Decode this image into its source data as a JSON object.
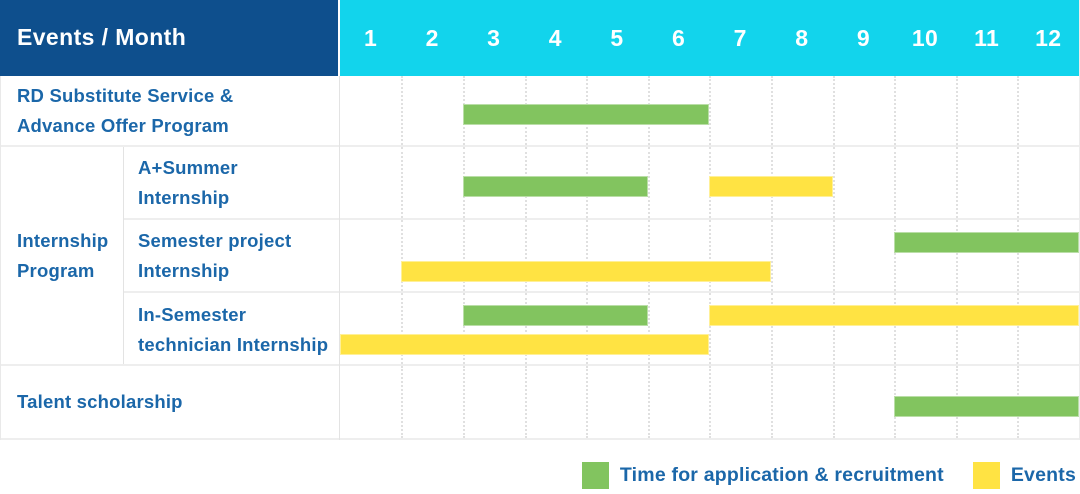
{
  "title": "Events / Month",
  "months": [
    "1",
    "2",
    "3",
    "4",
    "5",
    "6",
    "7",
    "8",
    "9",
    "10",
    "11",
    "12"
  ],
  "colors": {
    "header_navy": "#0e4f8d",
    "header_cyan": "#12d4ec",
    "bar_green": "#82c45f",
    "bar_yellow": "#ffe343",
    "label_blue": "#1b67a9"
  },
  "group": {
    "label_lines": [
      "Internship",
      "Program"
    ]
  },
  "rows": [
    {
      "name": "rd-substitute-service-advance-offer-program",
      "label_lines": [
        "RD Substitute Service &",
        "Advance Offer Program"
      ],
      "lines": [
        [
          {
            "color": "green",
            "start_month": 3,
            "end_month": 6
          }
        ]
      ]
    },
    {
      "name": "a-plus-summer-internship",
      "label_lines": [
        "A+Summer",
        "Internship"
      ],
      "lines": [
        [
          {
            "color": "green",
            "start_month": 3,
            "end_month": 5
          },
          {
            "color": "yellow",
            "start_month": 7,
            "end_month": 8
          }
        ]
      ]
    },
    {
      "name": "semester-project-internship",
      "label_lines": [
        "Semester project",
        "Internship"
      ],
      "lines": [
        [
          {
            "color": "green",
            "start_month": 10,
            "end_month": 12
          }
        ],
        [
          {
            "color": "yellow",
            "start_month": 2,
            "end_month": 7
          }
        ]
      ]
    },
    {
      "name": "in-semester-technician-internship",
      "label_lines": [
        "In-Semester",
        "technician Internship"
      ],
      "lines": [
        [
          {
            "color": "green",
            "start_month": 3,
            "end_month": 5
          },
          {
            "color": "yellow",
            "start_month": 7,
            "end_month": 12
          }
        ],
        [
          {
            "color": "yellow",
            "start_month": 1,
            "end_month": 6
          }
        ]
      ]
    },
    {
      "name": "talent-scholarship",
      "label_lines": [
        "Talent scholarship"
      ],
      "lines": [
        [
          {
            "color": "green",
            "start_month": 10,
            "end_month": 12
          }
        ]
      ]
    }
  ],
  "legend": [
    {
      "color": "green",
      "label": "Time for application & recruitment"
    },
    {
      "color": "yellow",
      "label": "Events"
    }
  ],
  "chart_data": {
    "type": "bar",
    "subtype": "gantt",
    "title": "Events / Month",
    "xlabel": "Month",
    "x_ticks": [
      1,
      2,
      3,
      4,
      5,
      6,
      7,
      8,
      9,
      10,
      11,
      12
    ],
    "x_range": [
      1,
      12
    ],
    "grid": true,
    "legend_position": "bottom-right",
    "series": [
      {
        "name": "Time for application & recruitment",
        "color": "#82c45f",
        "bars": [
          {
            "row": "RD Substitute Service & Advance Offer Program",
            "start_month": 3,
            "end_month": 6
          },
          {
            "row": "A+Summer Internship",
            "start_month": 3,
            "end_month": 5
          },
          {
            "row": "Semester project Internship",
            "start_month": 10,
            "end_month": 12
          },
          {
            "row": "In-Semester technician Internship",
            "start_month": 3,
            "end_month": 5
          },
          {
            "row": "Talent scholarship",
            "start_month": 10,
            "end_month": 12
          }
        ]
      },
      {
        "name": "Events",
        "color": "#ffe343",
        "bars": [
          {
            "row": "A+Summer Internship",
            "start_month": 7,
            "end_month": 8
          },
          {
            "row": "Semester project Internship",
            "start_month": 2,
            "end_month": 7
          },
          {
            "row": "In-Semester technician Internship",
            "start_month": 7,
            "end_month": 12
          },
          {
            "row": "In-Semester technician Internship",
            "start_month": 1,
            "end_month": 6
          }
        ]
      }
    ]
  }
}
